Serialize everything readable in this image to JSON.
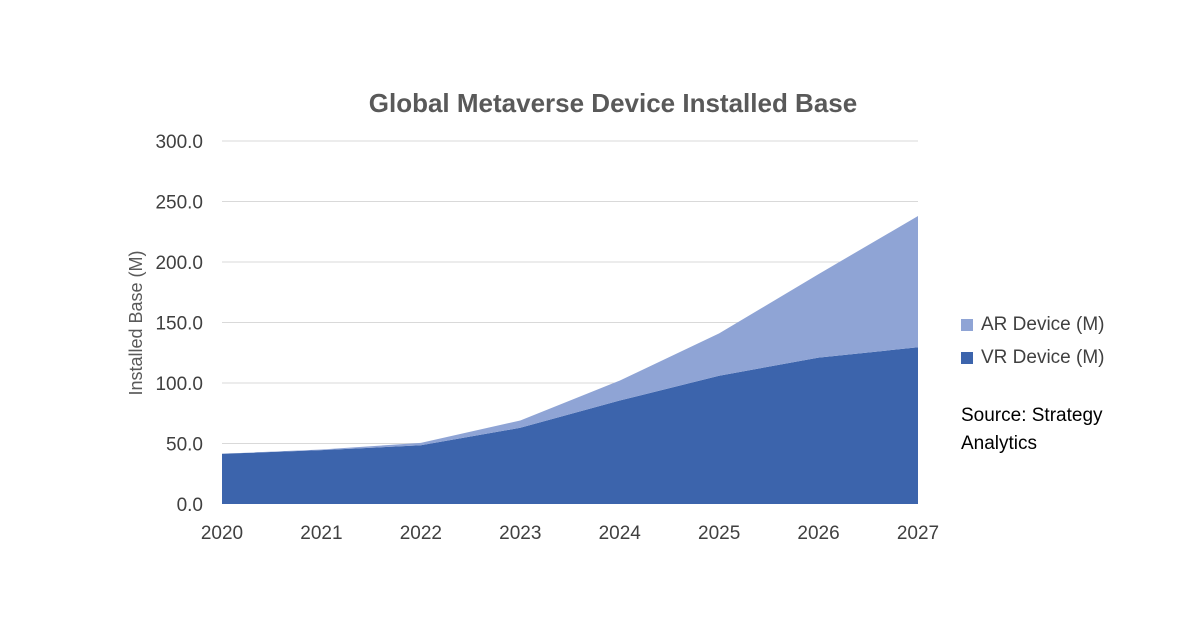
{
  "chart_data": {
    "type": "area",
    "stacked": true,
    "title": "Global Metaverse Device Installed Base",
    "ylabel": "Installed Base (M)",
    "xlabel": "",
    "categories": [
      "2020",
      "2021",
      "2022",
      "2023",
      "2024",
      "2025",
      "2026",
      "2027"
    ],
    "ylim": [
      0,
      300
    ],
    "yticks": [
      "0.0",
      "50.0",
      "100.0",
      "150.0",
      "200.0",
      "250.0",
      "300.0"
    ],
    "grid": true,
    "legend_position": "right",
    "series": [
      {
        "name": "VR Device (M)",
        "color": "#3c64ac",
        "values": [
          41.5,
          44.5,
          48.5,
          63.0,
          85.5,
          106.0,
          121.0,
          129.5
        ]
      },
      {
        "name": "AR Device (M)",
        "color": "#8fa4d5",
        "values": [
          0.0,
          0.5,
          2.0,
          6.0,
          16.5,
          35.0,
          69.0,
          108.5
        ]
      }
    ],
    "legend_order": [
      "AR Device (M)",
      "VR Device (M)"
    ],
    "annotation": "Source: Strategy Analytics"
  }
}
